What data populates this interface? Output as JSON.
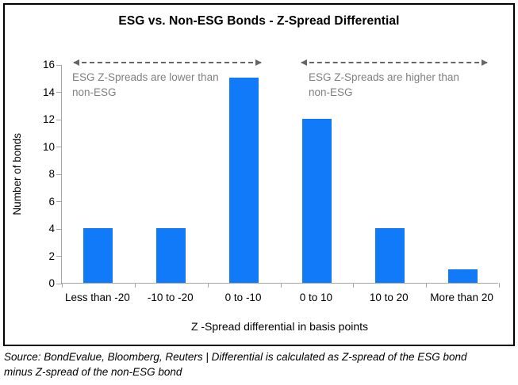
{
  "chart_data": {
    "type": "bar",
    "title": "ESG vs. Non-ESG Bonds - Z-Spread Differential",
    "categories": [
      "Less than -20",
      "-10 to -20",
      "0 to -10",
      "0 to 10",
      "10 to 20",
      "More than 20"
    ],
    "values": [
      4,
      4,
      15,
      12,
      4,
      1
    ],
    "xlabel": "Z -Spread differential in basis points",
    "ylabel": "Number of bonds",
    "ylim": [
      0,
      16
    ],
    "yticks": [
      0,
      2,
      4,
      6,
      8,
      10,
      12,
      14,
      16
    ],
    "grid": false,
    "legend": "none",
    "bar_color": "#117AF9",
    "annotations": [
      {
        "side": "left",
        "line1": "ESG Z-Spreads are lower than",
        "line2": "non-ESG"
      },
      {
        "side": "right",
        "line1": "ESG Z-Spreads are higher than",
        "line2": "non-ESG"
      }
    ]
  },
  "colors": {
    "axis": "#a6a6a6",
    "annotation_text": "#7f7f7f",
    "annotation_arrow": "#666666",
    "border": "#000000"
  },
  "footer": {
    "line1": "Source: BondEvalue, Bloomberg, Reuters | Differential is calculated as Z-spread of the ESG bond",
    "line2": "minus Z-spread of the non-ESG bond"
  }
}
